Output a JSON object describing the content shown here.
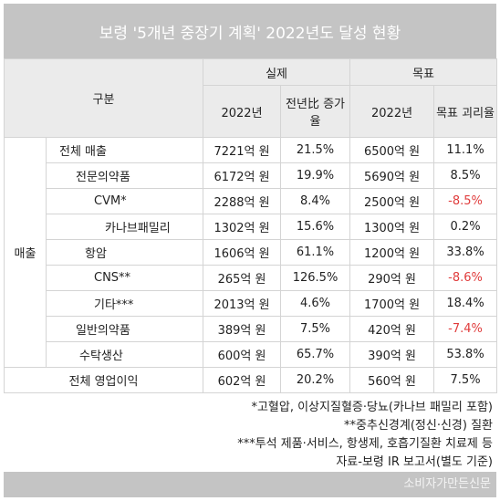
{
  "title": "보령 '5개년 중장기 계획' 2022년도 달성 현황",
  "header": {
    "category": "구분",
    "actual": "실제",
    "target": "목표",
    "actual_year": "2022년",
    "actual_growth": "전년比 증가율",
    "target_year": "2022년",
    "target_gap": "목표 괴리율"
  },
  "table": {
    "group": "매출",
    "rows": [
      [
        "전체 매출",
        "7221억 원",
        "21.5%",
        "6500억 원",
        "11.1%"
      ],
      [
        "전문의약품",
        "6172억 원",
        "19.9%",
        "5690억 원",
        "8.5%"
      ],
      [
        "CVM*",
        "2288억 원",
        "8.4%",
        "2500억 원",
        "-8.5%"
      ],
      [
        "카나브패밀리",
        "1302억 원",
        "15.6%",
        "1300억 원",
        "0.2%"
      ],
      [
        "항암",
        "1606억 원",
        "61.1%",
        "1200억 원",
        "33.8%"
      ],
      [
        "CNS**",
        "265억 원",
        "126.5%",
        "290억 원",
        "-8.6%"
      ],
      [
        "기타***",
        "2013억 원",
        "4.6%",
        "1700억 원",
        "18.4%"
      ],
      [
        "일반의약품",
        "389억 원",
        "7.5%",
        "420억 원",
        "-7.4%"
      ],
      [
        "수탁생산",
        "600억 원",
        "65.7%",
        "390억 원",
        "53.8%"
      ]
    ],
    "total": [
      "전체 영업이익",
      "602억 원",
      "20.2%",
      "560억 원",
      "7.5%"
    ]
  },
  "footnotes": [
    "*고혈압, 이상지질혈증·당뇨(카나브 패밀리 포함)",
    "**중추신경계(정신·신경) 질환",
    "***투석 제품·서비스, 항생제, 호흡기질환 치료제 등",
    "자료-보령 IR 보고서(별도 기준)"
  ],
  "watermark": "소비자가만든신문"
}
